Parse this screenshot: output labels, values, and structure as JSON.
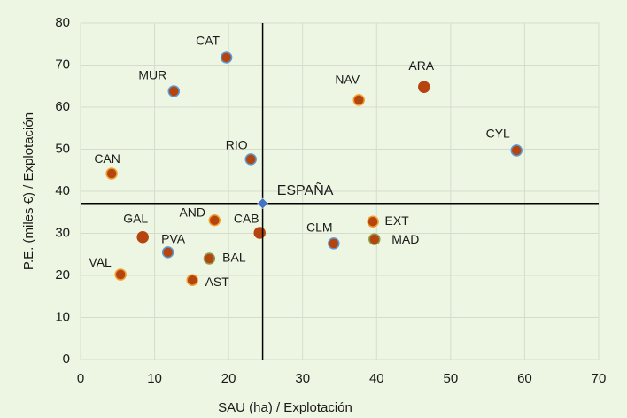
{
  "chart_data": {
    "type": "scatter",
    "xlabel": "SAU (ha) / Explotación",
    "ylabel": "P.E. (miles €) / Explotación",
    "xlim": [
      0,
      70
    ],
    "xticks": [
      0,
      10,
      20,
      30,
      40,
      50,
      60,
      70
    ],
    "ylim": [
      0,
      80
    ],
    "yticks": [
      0,
      10,
      20,
      30,
      40,
      50,
      60,
      70,
      80
    ],
    "grid": true,
    "series": [
      {
        "color": "#b5440f",
        "labels": [
          "CAT",
          "MUR",
          "NAV",
          "ARA",
          "CYL",
          "RIO",
          "CAN",
          "AND",
          "CAB",
          "EXT",
          "MAD",
          "CLM",
          "GAL",
          "PVA",
          "BAL",
          "AST",
          "VAL"
        ],
        "x": [
          19.7,
          12.6,
          37.6,
          46.4,
          58.9,
          23.0,
          4.2,
          18.1,
          24.2,
          39.5,
          39.7,
          34.2,
          8.4,
          11.8,
          17.4,
          15.1,
          5.4
        ],
        "values": [
          71.8,
          63.8,
          61.7,
          64.8,
          49.7,
          47.6,
          44.2,
          33.1,
          30.1,
          32.8,
          28.6,
          27.6,
          29.1,
          25.5,
          24.0,
          18.9,
          20.2
        ],
        "edgecolors": [
          "#5b9bd5",
          "#5b9bd5",
          "#f0a030",
          "#b5440f",
          "#5b9bd5",
          "#5b9bd5",
          "#f0a030",
          "#f0a030",
          "#b5440f",
          "#f0a030",
          "#8aa050",
          "#5b9bd5",
          "#b5440f",
          "#5b9bd5",
          "#8aa050",
          "#f0a030",
          "#f0a030"
        ]
      },
      {
        "color": "#4472c4",
        "marker": "diamond",
        "labels": [
          "ESPAÑA"
        ],
        "x": [
          24.6
        ],
        "values": [
          37.1
        ]
      }
    ]
  }
}
